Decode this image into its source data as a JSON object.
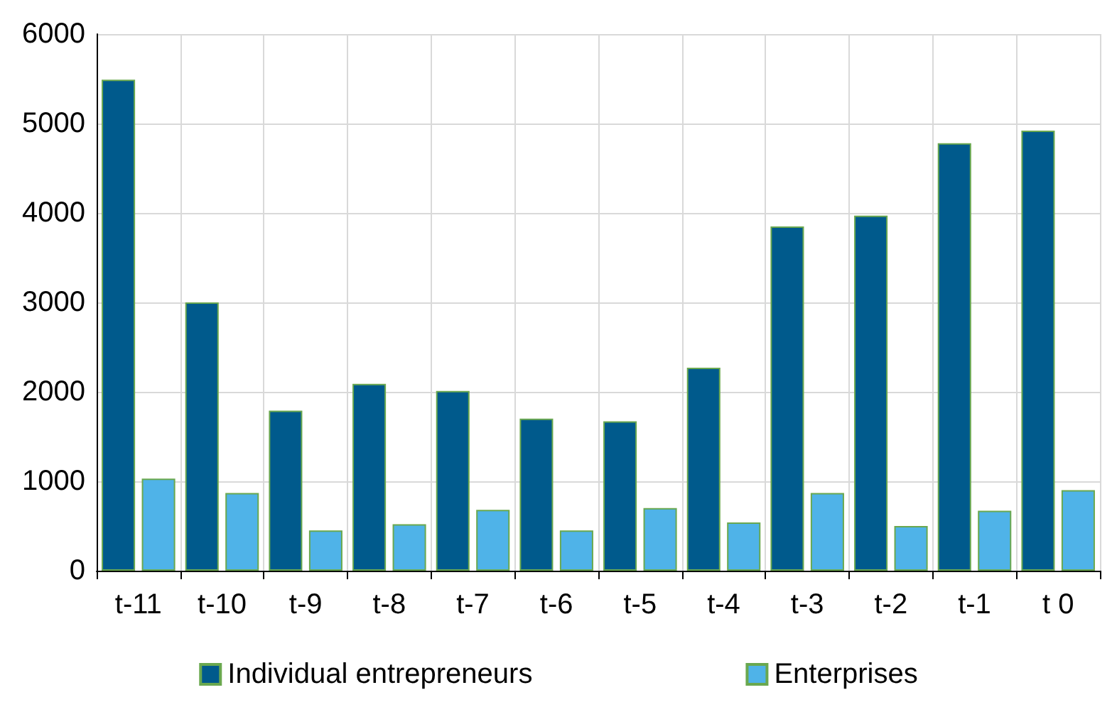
{
  "chart_data": {
    "type": "bar",
    "categories": [
      "t-11",
      "t-10",
      "t-9",
      "t-8",
      "t-7",
      "t-6",
      "t-5",
      "t-4",
      "t-3",
      "t-2",
      "t-1",
      "t 0"
    ],
    "series": [
      {
        "name": "Individual entrepreneurs",
        "color": "#005a8c",
        "values": [
          5490,
          3000,
          1790,
          2090,
          2010,
          1700,
          1670,
          2270,
          3850,
          3970,
          4780,
          4920
        ]
      },
      {
        "name": "Enterprises",
        "color": "#4fb3e8",
        "values": [
          1030,
          870,
          450,
          520,
          680,
          450,
          700,
          540,
          870,
          500,
          670,
          900
        ]
      }
    ],
    "ylim": [
      0,
      6000
    ],
    "yticks": [
      0,
      1000,
      2000,
      3000,
      4000,
      5000,
      6000
    ],
    "grid": true,
    "legend": "bottom"
  }
}
